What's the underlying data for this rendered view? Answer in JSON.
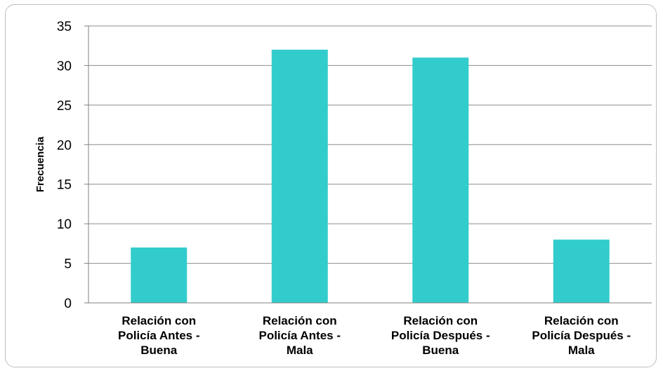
{
  "chart_data": {
    "type": "bar",
    "title": "",
    "xlabel": "",
    "ylabel": "Frecuencia",
    "ylim": [
      0,
      35
    ],
    "yticks": [
      0,
      5,
      10,
      15,
      20,
      25,
      30,
      35
    ],
    "grid": true,
    "legend": "none",
    "bar_color": "#33CCCC",
    "categories": [
      [
        "Relación con",
        "Policía Antes -",
        "Buena"
      ],
      [
        "Relación con",
        "Policía Antes -",
        "Mala"
      ],
      [
        "Relación con",
        "Policía Después -",
        "Buena"
      ],
      [
        "Relación con",
        "Policía Después -",
        "Mala"
      ]
    ],
    "values": [
      7,
      32,
      31,
      8
    ]
  }
}
